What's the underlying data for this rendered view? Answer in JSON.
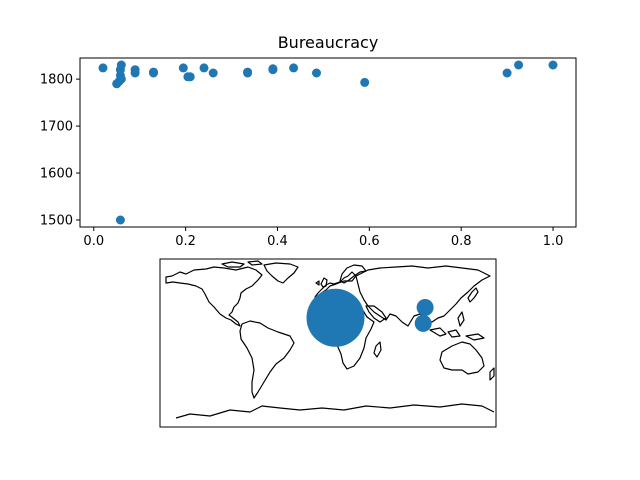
{
  "chart_data": [
    {
      "type": "scatter",
      "title": "Bureaucracy",
      "xlabel": "",
      "ylabel": "",
      "xlim": [
        -0.03,
        1.05
      ],
      "ylim": [
        1485,
        1845
      ],
      "xticks": [
        0.0,
        0.2,
        0.4,
        0.6,
        0.8,
        1.0
      ],
      "xtick_labels": [
        "0.0",
        "0.2",
        "0.4",
        "0.6",
        "0.8",
        "1.0"
      ],
      "yticks": [
        1500,
        1600,
        1700,
        1800
      ],
      "ytick_labels": [
        "1500",
        "1600",
        "1700",
        "1800"
      ],
      "grid": false,
      "color": "#1f77b4",
      "points": [
        {
          "x": 0.02,
          "y": 1824
        },
        {
          "x": 0.05,
          "y": 1790
        },
        {
          "x": 0.055,
          "y": 1795
        },
        {
          "x": 0.058,
          "y": 1808
        },
        {
          "x": 0.058,
          "y": 1820
        },
        {
          "x": 0.06,
          "y": 1830
        },
        {
          "x": 0.06,
          "y": 1800
        },
        {
          "x": 0.058,
          "y": 1500
        },
        {
          "x": 0.09,
          "y": 1813
        },
        {
          "x": 0.09,
          "y": 1820
        },
        {
          "x": 0.13,
          "y": 1813
        },
        {
          "x": 0.13,
          "y": 1815
        },
        {
          "x": 0.195,
          "y": 1824
        },
        {
          "x": 0.205,
          "y": 1805
        },
        {
          "x": 0.21,
          "y": 1805
        },
        {
          "x": 0.24,
          "y": 1824
        },
        {
          "x": 0.26,
          "y": 1813
        },
        {
          "x": 0.335,
          "y": 1813
        },
        {
          "x": 0.335,
          "y": 1815
        },
        {
          "x": 0.39,
          "y": 1820
        },
        {
          "x": 0.39,
          "y": 1822
        },
        {
          "x": 0.435,
          "y": 1824
        },
        {
          "x": 0.485,
          "y": 1813
        },
        {
          "x": 0.59,
          "y": 1793
        },
        {
          "x": 0.9,
          "y": 1813
        },
        {
          "x": 0.925,
          "y": 1830
        },
        {
          "x": 1.0,
          "y": 1830
        }
      ]
    },
    {
      "type": "map",
      "projection": "plate-carree",
      "extent": {
        "lon": [
          -180,
          180
        ],
        "lat": [
          -90,
          90
        ]
      },
      "color": "#1f77b4",
      "markers": [
        {
          "lon": 8,
          "lat": 27,
          "size": "large"
        },
        {
          "lon": 104,
          "lat": 38,
          "size": "small"
        },
        {
          "lon": 102,
          "lat": 21,
          "size": "small"
        }
      ]
    }
  ]
}
